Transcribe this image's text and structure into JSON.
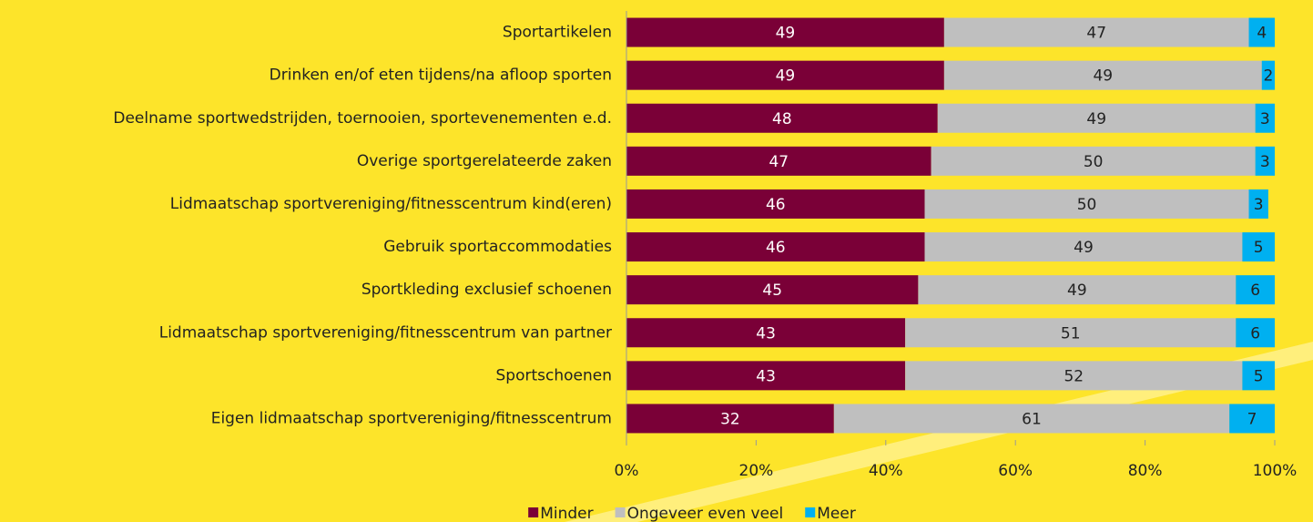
{
  "chart_data": {
    "type": "stacked_bar_horizontal",
    "categories": [
      "Sportartikelen",
      "Drinken en/of eten tijdens/na afloop sporten",
      "Deelname sportwedstrijden, toernooien, sportevenementen e.d.",
      "Overige sportgerelateerde zaken",
      "Lidmaatschap sportvereniging/fitnesscentrum kind(eren)",
      "Gebruik sportaccommodaties",
      "Sportkleding exclusief schoenen",
      "Lidmaatschap sportvereniging/fitnesscentrum van partner",
      "Sportschoenen",
      "Eigen lidmaatschap sportvereniging/fitnesscentrum"
    ],
    "series": [
      {
        "name": "Minder",
        "color": "#7a0037",
        "values": [
          49,
          49,
          48,
          47,
          46,
          46,
          45,
          43,
          43,
          32
        ]
      },
      {
        "name": "Ongeveer even veel",
        "color": "#bfbfbf",
        "values": [
          47,
          49,
          49,
          50,
          50,
          49,
          49,
          51,
          52,
          61
        ]
      },
      {
        "name": "Meer",
        "color": "#00b0f0",
        "values": [
          4,
          2,
          3,
          3,
          3,
          5,
          6,
          6,
          5,
          7
        ]
      }
    ],
    "xlim": [
      0,
      100
    ],
    "xticks": [
      {
        "value": 0,
        "label": "0%"
      },
      {
        "value": 20,
        "label": "20%"
      },
      {
        "value": 40,
        "label": "40%"
      },
      {
        "value": 60,
        "label": "60%"
      },
      {
        "value": 80,
        "label": "80%"
      },
      {
        "value": 100,
        "label": "100%"
      }
    ],
    "legend": "bottom"
  }
}
